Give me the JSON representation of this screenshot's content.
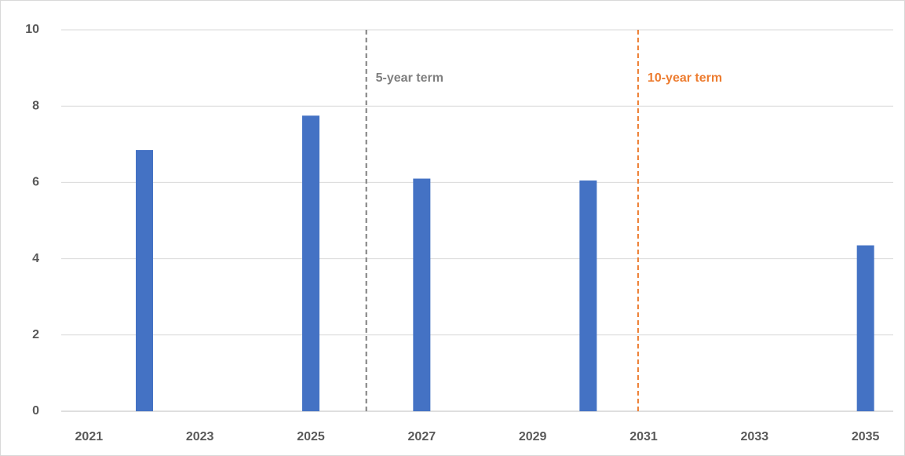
{
  "chart_data": {
    "type": "bar",
    "categories": [
      "2021",
      null,
      "2023",
      null,
      "2025",
      null,
      "2027",
      null,
      "2029",
      null,
      "2031",
      null,
      "2033",
      null,
      "2035"
    ],
    "values": [
      null,
      6.85,
      null,
      null,
      7.75,
      null,
      6.1,
      null,
      null,
      6.05,
      null,
      null,
      null,
      null,
      4.35
    ],
    "color": "#4472c4",
    "ylim": [
      0,
      10
    ],
    "yticks": [
      0,
      2,
      4,
      6,
      8,
      10
    ],
    "grid": true,
    "annotations": [
      {
        "text": "5-year term",
        "x": 2026,
        "color": "#7f7f7f"
      },
      {
        "text": "10-year term",
        "x": 2030.9,
        "color": "#ed7d31"
      }
    ]
  }
}
